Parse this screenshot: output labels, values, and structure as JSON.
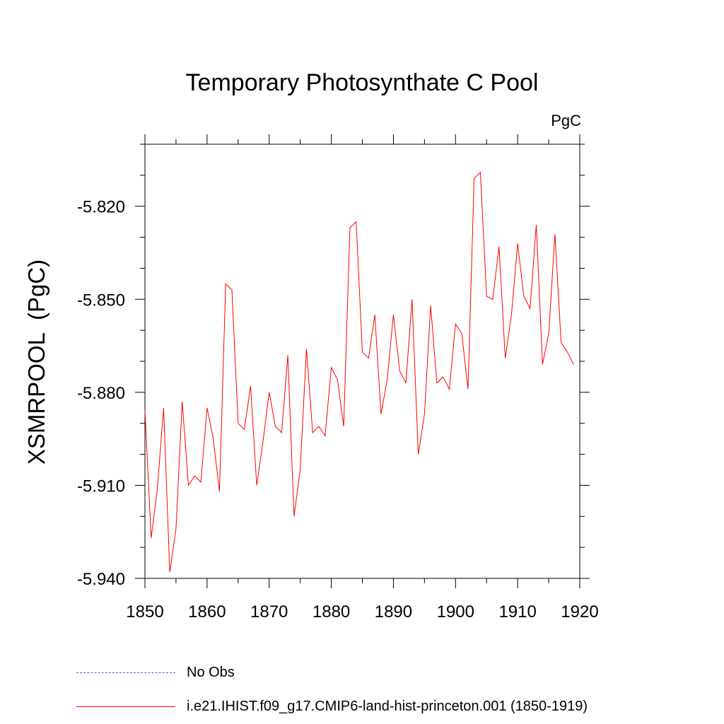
{
  "chart_data": {
    "type": "line",
    "title": "Temporary Photosynthate C Pool",
    "units_label": "PgC",
    "ylabel": "XSMRPOOL  (PgC)",
    "xlabel": "",
    "xlim": [
      1850,
      1920
    ],
    "ylim": [
      -5.94,
      -5.8
    ],
    "x_ticks": [
      1850,
      1860,
      1870,
      1880,
      1890,
      1900,
      1910,
      1920
    ],
    "x_tick_labels": [
      "1850",
      "1860",
      "1870",
      "1880",
      "1890",
      "1900",
      "1910",
      "1920"
    ],
    "y_ticks": [
      -5.94,
      -5.91,
      -5.88,
      -5.85,
      -5.82
    ],
    "y_tick_labels": [
      "-5.940",
      "-5.910",
      "-5.880",
      "-5.850",
      "-5.820"
    ],
    "grid": false,
    "legend_position": "bottom",
    "series": [
      {
        "name": "i.e21.IHIST.f09_g17.CMIP6-land-hist-princeton.001 (1850-1919)",
        "color": "#ff0000",
        "x": [
          1850,
          1851,
          1852,
          1853,
          1854,
          1855,
          1856,
          1857,
          1858,
          1859,
          1860,
          1861,
          1862,
          1863,
          1864,
          1865,
          1866,
          1867,
          1868,
          1869,
          1870,
          1871,
          1872,
          1873,
          1874,
          1875,
          1876,
          1877,
          1878,
          1879,
          1880,
          1881,
          1882,
          1883,
          1884,
          1885,
          1886,
          1887,
          1888,
          1889,
          1890,
          1891,
          1892,
          1893,
          1894,
          1895,
          1896,
          1897,
          1898,
          1899,
          1900,
          1901,
          1902,
          1903,
          1904,
          1905,
          1906,
          1907,
          1908,
          1909,
          1910,
          1911,
          1912,
          1913,
          1914,
          1915,
          1916,
          1917,
          1918,
          1919
        ],
        "values": [
          -5.886,
          -5.927,
          -5.911,
          -5.885,
          -5.938,
          -5.924,
          -5.883,
          -5.91,
          -5.907,
          -5.909,
          -5.885,
          -5.895,
          -5.912,
          -5.845,
          -5.847,
          -5.89,
          -5.892,
          -5.878,
          -5.91,
          -5.896,
          -5.88,
          -5.891,
          -5.893,
          -5.868,
          -5.92,
          -5.905,
          -5.866,
          -5.893,
          -5.891,
          -5.894,
          -5.872,
          -5.876,
          -5.891,
          -5.827,
          -5.825,
          -5.867,
          -5.869,
          -5.855,
          -5.887,
          -5.876,
          -5.855,
          -5.873,
          -5.877,
          -5.85,
          -5.9,
          -5.887,
          -5.852,
          -5.877,
          -5.875,
          -5.879,
          -5.858,
          -5.861,
          -5.879,
          -5.811,
          -5.809,
          -5.849,
          -5.85,
          -5.833,
          -5.869,
          -5.855,
          -5.832,
          -5.849,
          -5.853,
          -5.826,
          -5.871,
          -5.861,
          -5.829,
          -5.864,
          -5.867,
          -5.871
        ]
      }
    ],
    "legend": [
      {
        "label": "No Obs",
        "style": "dashed",
        "color": "#5a5ad6"
      },
      {
        "label": "i.e21.IHIST.f09_g17.CMIP6-land-hist-princeton.001 (1850-1919)",
        "style": "solid",
        "color": "#ff0000"
      }
    ]
  }
}
